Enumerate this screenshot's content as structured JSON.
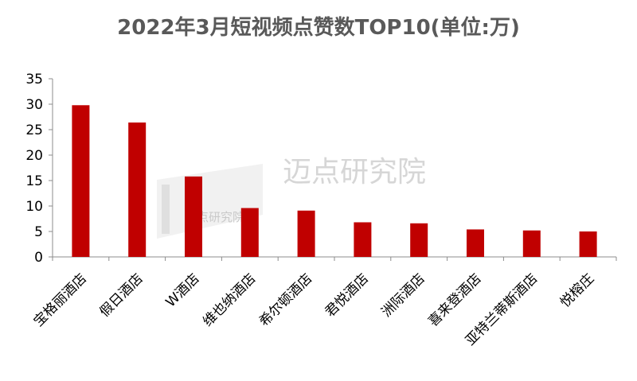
{
  "chart_data": {
    "type": "bar",
    "title": "2022年3月短视频点赞数TOP10(单位:万)",
    "categories": [
      "宝格丽酒店",
      "假日酒店",
      "W酒店",
      "维也纳酒店",
      "希尔顿酒店",
      "君悦酒店",
      "洲际酒店",
      "喜来登酒店",
      "亚特兰蒂斯酒店",
      "悦榕庄"
    ],
    "values": [
      29.8,
      26.4,
      15.8,
      9.6,
      9.1,
      6.8,
      6.6,
      5.4,
      5.2,
      5.0
    ],
    "ylim": [
      0,
      35
    ],
    "yticks": [
      0,
      5,
      10,
      15,
      20,
      25,
      30,
      35
    ],
    "xlabel": "",
    "ylabel": "",
    "bar_color": "#c00000",
    "grid": false,
    "legend": "none"
  },
  "watermark": {
    "text": "迈点研究院",
    "small_text": "迈点研究院"
  }
}
